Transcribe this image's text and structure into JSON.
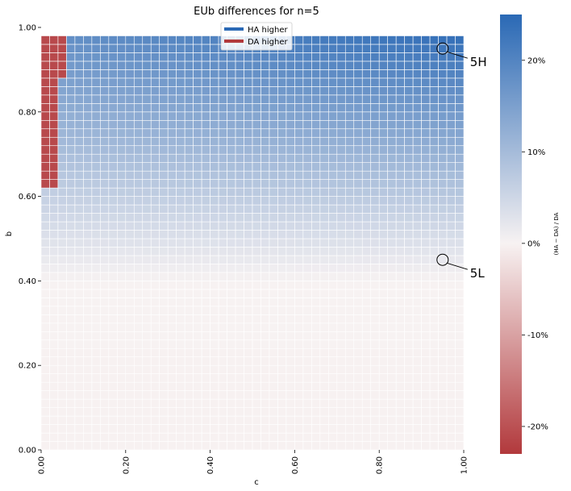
{
  "chart_data": {
    "type": "heatmap",
    "title": "EUb differences for n=5",
    "xlabel": "c",
    "ylabel": "b",
    "xlim": [
      0,
      1
    ],
    "ylim": [
      0,
      1
    ],
    "grid_cols": 50,
    "grid_rows": 50,
    "x_ticks": [
      "0.00",
      "0.20",
      "0.40",
      "0.60",
      "0.80",
      "1.00"
    ],
    "y_ticks": [
      "0.00",
      "0.20",
      "0.40",
      "0.60",
      "0.80",
      "1.00"
    ],
    "colorbar": {
      "label": "(HA − DA) / DA",
      "range": [
        -0.23,
        0.25
      ],
      "tick_values": [
        0.2,
        0.1,
        0.0,
        -0.1,
        -0.2
      ],
      "tick_labels": [
        "20%",
        "10%",
        "0%",
        "-10%",
        "-20%"
      ],
      "colors": {
        "low": "#b2393c",
        "mid": "#f7f2f2",
        "high": "#2a69b5"
      }
    },
    "legend": {
      "placement": "top-center",
      "entries": [
        {
          "label": "HA higher",
          "color": "#2a69b5"
        },
        {
          "label": "DA higher",
          "color": "#b2393c"
        }
      ]
    },
    "value_model": {
      "description": "value rises with b (about 0 at b=0.4, about 0.25 at b=1) and slightly with c; cells at c≤0.04 and b≥0.62 are negative",
      "da_higher_region": {
        "c_max": 0.04,
        "b_min": 0.62,
        "wide_c_max": 0.06,
        "wide_b_min": 0.88,
        "value": -0.21
      }
    },
    "annotations": [
      {
        "label": "5H",
        "c": 0.95,
        "b": 0.95
      },
      {
        "label": "5L",
        "c": 0.95,
        "b": 0.45
      }
    ]
  }
}
